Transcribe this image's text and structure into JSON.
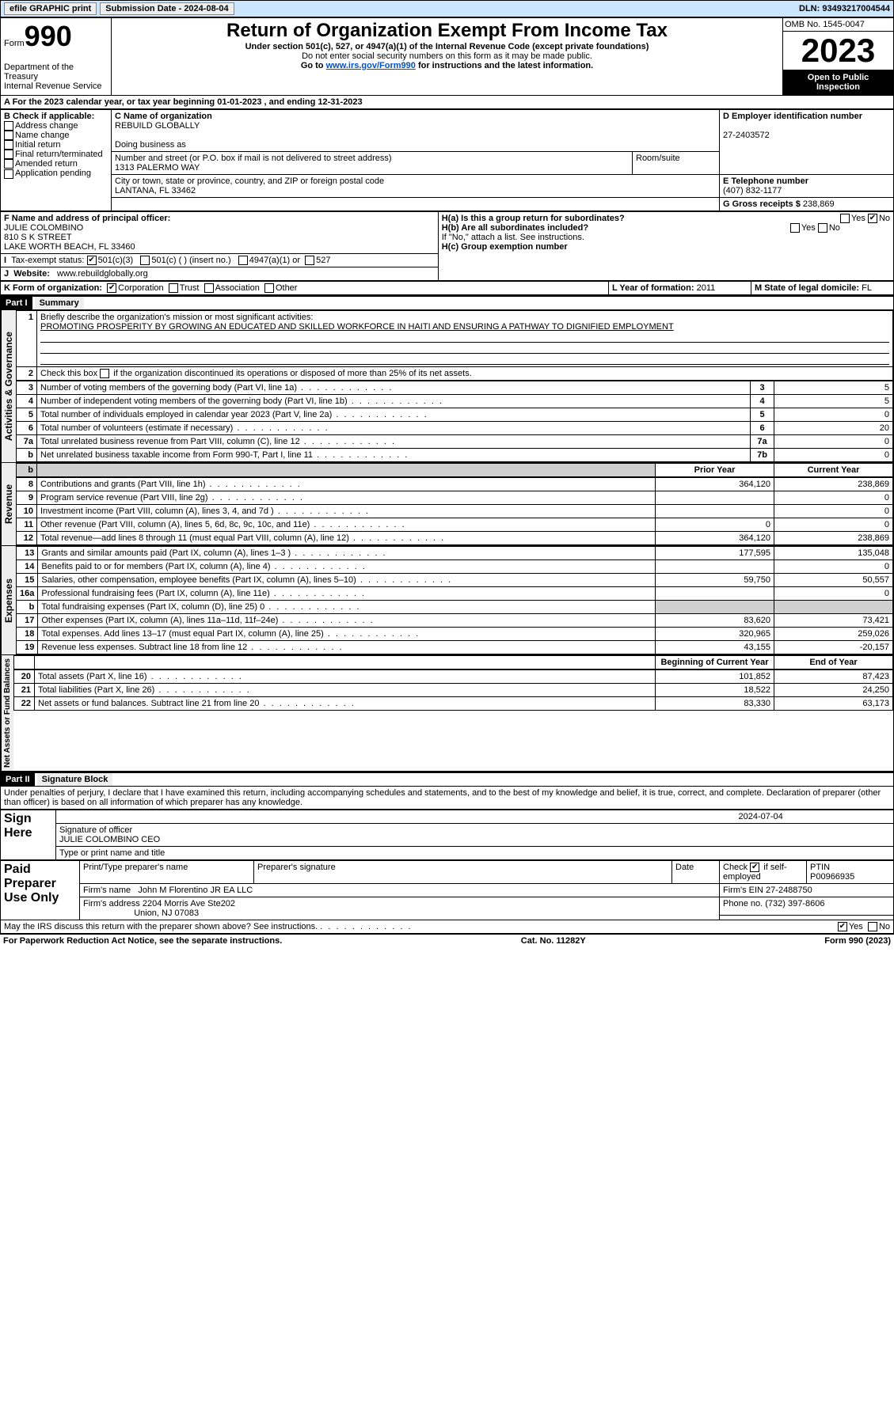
{
  "topbar": {
    "efile": "efile GRAPHIC print",
    "submission": "Submission Date - 2024-08-04",
    "dln": "DLN: 93493217004544"
  },
  "header": {
    "form_label": "Form",
    "form_no": "990",
    "dept": "Department of the Treasury",
    "irs": "Internal Revenue Service",
    "title": "Return of Organization Exempt From Income Tax",
    "subtitle": "Under section 501(c), 527, or 4947(a)(1) of the Internal Revenue Code (except private foundations)",
    "subtitle2": "Do not enter social security numbers on this form as it may be made public.",
    "goto": "Go to ",
    "goto_link": "www.irs.gov/Form990",
    "goto_tail": " for instructions and the latest information.",
    "omb": "OMB No. 1545-0047",
    "year": "2023",
    "open": "Open to Public Inspection"
  },
  "periodA": {
    "prefix": "A For the 2023 calendar year, or tax year beginning ",
    "begin": "01-01-2023",
    "mid": " , and ending ",
    "end": "12-31-2023"
  },
  "boxB": {
    "label": "B Check if applicable:",
    "items": [
      "Address change",
      "Name change",
      "Initial return",
      "Final return/terminated",
      "Amended return",
      "Application pending"
    ]
  },
  "boxC": {
    "name_lbl": "C Name of organization",
    "name": "REBUILD GLOBALLY",
    "dba_lbl": "Doing business as",
    "dba": "",
    "street_lbl": "Number and street (or P.O. box if mail is not delivered to street address)",
    "street": "1313 PALERMO WAY",
    "room_lbl": "Room/suite",
    "room": "",
    "city_lbl": "City or town, state or province, country, and ZIP or foreign postal code",
    "city": "LANTANA, FL  33462"
  },
  "boxD": {
    "lbl": "D Employer identification number",
    "val": "27-2403572"
  },
  "boxE": {
    "lbl": "E Telephone number",
    "val": "(407) 832-1177"
  },
  "boxG": {
    "lbl": "G Gross receipts $",
    "val": "238,869"
  },
  "boxF": {
    "lbl": "F Name and address of principal officer:",
    "l1": "JULIE COLOMBINO",
    "l2": "810 S K STREET",
    "l3": "LAKE WORTH BEACH, FL  33460"
  },
  "boxH": {
    "ha": "H(a) Is this a group return for subordinates?",
    "hb": "H(b) Are all subordinates included?",
    "hb_note": "If \"No,\" attach a list. See instructions.",
    "hc": "H(c) Group exemption number ",
    "yes": "Yes",
    "no": "No"
  },
  "boxI": {
    "lbl": "Tax-exempt status:",
    "o1": "501(c)(3)",
    "o2": "501(c) (  ) (insert no.)",
    "o3": "4947(a)(1) or",
    "o4": "527"
  },
  "boxJ": {
    "lbl": "Website:",
    "val": "www.rebuildglobally.org"
  },
  "boxK": {
    "lbl": "K Form of organization:",
    "o1": "Corporation",
    "o2": "Trust",
    "o3": "Association",
    "o4": "Other"
  },
  "boxL": {
    "lbl": "L Year of formation:",
    "val": "2011"
  },
  "boxM": {
    "lbl": "M State of legal domicile:",
    "val": "FL"
  },
  "part1": {
    "hdr": "Part I",
    "title": "Summary",
    "l1_lbl": "Briefly describe the organization's mission or most significant activities:",
    "l1_val": "PROMOTING PROSPERITY BY GROWING AN EDUCATED AND SKILLED WORKFORCE IN HAITI AND ENSURING A PATHWAY TO DIGNIFIED EMPLOYMENT",
    "l2": "Check this box        if the organization discontinued its operations or disposed of more than 25% of its net assets.",
    "lines_ag": [
      {
        "no": "3",
        "lbl": "Number of voting members of the governing body (Part VI, line 1a)",
        "box": "3",
        "val": "5"
      },
      {
        "no": "4",
        "lbl": "Number of independent voting members of the governing body (Part VI, line 1b)",
        "box": "4",
        "val": "5"
      },
      {
        "no": "5",
        "lbl": "Total number of individuals employed in calendar year 2023 (Part V, line 2a)",
        "box": "5",
        "val": "0"
      },
      {
        "no": "6",
        "lbl": "Total number of volunteers (estimate if necessary)",
        "box": "6",
        "val": "20"
      },
      {
        "no": "7a",
        "lbl": "Total unrelated business revenue from Part VIII, column (C), line 12",
        "box": "7a",
        "val": "0"
      },
      {
        "no": "b",
        "lbl": "Net unrelated business taxable income from Form 990-T, Part I, line 11",
        "box": "7b",
        "val": "0"
      }
    ],
    "colhdr_prior": "Prior Year",
    "colhdr_curr": "Current Year",
    "rev": [
      {
        "no": "8",
        "lbl": "Contributions and grants (Part VIII, line 1h)",
        "p": "364,120",
        "c": "238,869"
      },
      {
        "no": "9",
        "lbl": "Program service revenue (Part VIII, line 2g)",
        "p": "",
        "c": "0"
      },
      {
        "no": "10",
        "lbl": "Investment income (Part VIII, column (A), lines 3, 4, and 7d )",
        "p": "",
        "c": "0"
      },
      {
        "no": "11",
        "lbl": "Other revenue (Part VIII, column (A), lines 5, 6d, 8c, 9c, 10c, and 11e)",
        "p": "0",
        "c": "0"
      },
      {
        "no": "12",
        "lbl": "Total revenue—add lines 8 through 11 (must equal Part VIII, column (A), line 12)",
        "p": "364,120",
        "c": "238,869"
      }
    ],
    "exp": [
      {
        "no": "13",
        "lbl": "Grants and similar amounts paid (Part IX, column (A), lines 1–3 )",
        "p": "177,595",
        "c": "135,048"
      },
      {
        "no": "14",
        "lbl": "Benefits paid to or for members (Part IX, column (A), line 4)",
        "p": "",
        "c": "0"
      },
      {
        "no": "15",
        "lbl": "Salaries, other compensation, employee benefits (Part IX, column (A), lines 5–10)",
        "p": "59,750",
        "c": "50,557"
      },
      {
        "no": "16a",
        "lbl": "Professional fundraising fees (Part IX, column (A), line 11e)",
        "p": "",
        "c": "0"
      },
      {
        "no": "b",
        "lbl": "Total fundraising expenses (Part IX, column (D), line 25) 0",
        "p": "SHADE",
        "c": "SHADE"
      },
      {
        "no": "17",
        "lbl": "Other expenses (Part IX, column (A), lines 11a–11d, 11f–24e)",
        "p": "83,620",
        "c": "73,421"
      },
      {
        "no": "18",
        "lbl": "Total expenses. Add lines 13–17 (must equal Part IX, column (A), line 25)",
        "p": "320,965",
        "c": "259,026"
      },
      {
        "no": "19",
        "lbl": "Revenue less expenses. Subtract line 18 from line 12",
        "p": "43,155",
        "c": "-20,157"
      }
    ],
    "colhdr_boy": "Beginning of Current Year",
    "colhdr_eoy": "End of Year",
    "na": [
      {
        "no": "20",
        "lbl": "Total assets (Part X, line 16)",
        "p": "101,852",
        "c": "87,423"
      },
      {
        "no": "21",
        "lbl": "Total liabilities (Part X, line 26)",
        "p": "18,522",
        "c": "24,250"
      },
      {
        "no": "22",
        "lbl": "Net assets or fund balances. Subtract line 21 from line 20",
        "p": "83,330",
        "c": "63,173"
      }
    ],
    "band_ag": "Activities & Governance",
    "band_rev": "Revenue",
    "band_exp": "Expenses",
    "band_na": "Net Assets or Fund Balances"
  },
  "part2": {
    "hdr": "Part II",
    "title": "Signature Block",
    "jurat": "Under penalties of perjury, I declare that I have examined this return, including accompanying schedules and statements, and to the best of my knowledge and belief, it is true, correct, and complete. Declaration of preparer (other than officer) is based on all information of which preparer has any knowledge.",
    "sign_here": "Sign Here",
    "sig_officer_lbl": "Signature of officer",
    "sig_date": "2024-07-04",
    "sig_officer": "JULIE COLOMBINO CEO",
    "sig_nametitle_lbl": "Type or print name and title",
    "paid": "Paid Preparer Use Only",
    "pp_name_lbl": "Print/Type preparer's name",
    "pp_sig_lbl": "Preparer's signature",
    "pp_date_lbl": "Date",
    "pp_check_lbl": "Check         if self-employed",
    "ptin_lbl": "PTIN",
    "ptin": "P00966935",
    "firm_name_lbl": "Firm's name",
    "firm_name": "John M Florentino JR EA LLC",
    "firm_ein_lbl": "Firm's EIN",
    "firm_ein": "27-2488750",
    "firm_addr_lbl": "Firm's address",
    "firm_addr1": "2204 Morris Ave Ste202",
    "firm_addr2": "Union, NJ  07083",
    "phone_lbl": "Phone no.",
    "phone": "(732) 397-8606",
    "discuss": "May the IRS discuss this return with the preparer shown above? See instructions.",
    "yes": "Yes",
    "no": "No"
  },
  "footer": {
    "pra": "For Paperwork Reduction Act Notice, see the separate instructions.",
    "cat": "Cat. No. 11282Y",
    "form": "Form 990 (2023)"
  }
}
